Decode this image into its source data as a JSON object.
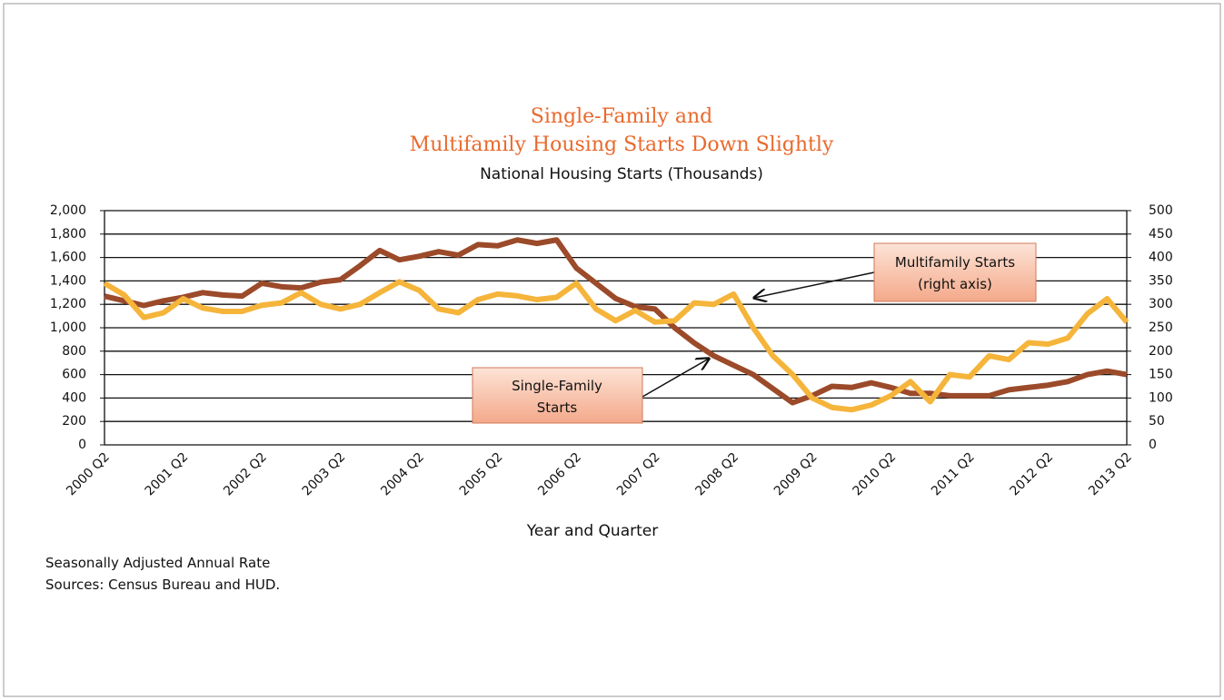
{
  "chart_data": {
    "type": "line",
    "title": [
      "Single-Family  and",
      "Multifamily Housing Starts Down Slightly"
    ],
    "subtitle": "National Housing Starts (Thousands)",
    "x_label": "Year and Quarter",
    "notes": [
      "Seasonally Adjusted Annual Rate",
      "Sources: Census Bureau and HUD."
    ],
    "annotations": [
      {
        "lines": [
          "Multifamily Starts",
          "(right axis)"
        ]
      },
      {
        "lines": [
          "Single-Family",
          "Starts"
        ]
      }
    ],
    "categories": [
      "2000 Q2",
      null,
      null,
      null,
      "2001 Q2",
      null,
      null,
      null,
      "2002 Q2",
      null,
      null,
      null,
      "2003 Q2",
      null,
      null,
      null,
      "2004 Q2",
      null,
      null,
      null,
      "2005 Q2",
      null,
      null,
      null,
      "2006 Q2",
      null,
      null,
      null,
      "2007 Q2",
      null,
      null,
      null,
      "2008 Q2",
      null,
      null,
      null,
      "2009 Q2",
      null,
      null,
      null,
      "2010 Q2",
      null,
      null,
      null,
      "2011 Q2",
      null,
      null,
      null,
      "2012 Q2",
      null,
      null,
      null,
      "2013 Q2"
    ],
    "series": [
      {
        "color": "#9b4a2a",
        "values": [
          1270,
          1230,
          1190,
          1230,
          1260,
          1300,
          1280,
          1270,
          1380,
          1350,
          1340,
          1390,
          1410,
          1530,
          1660,
          1580,
          1610,
          1650,
          1620,
          1710,
          1700,
          1750,
          1720,
          1750,
          1510,
          1380,
          1250,
          1180,
          1160,
          1000,
          870,
          760,
          680,
          600,
          480,
          360,
          420,
          500,
          490,
          530,
          490,
          440,
          440,
          420,
          420,
          420,
          470,
          490,
          510,
          540,
          600,
          630,
          600
        ]
      },
      {
        "color": "#f5b43a",
        "axis": "y2",
        "values": [
          345,
          320,
          272,
          282,
          312,
          292,
          285,
          285,
          298,
          303,
          325,
          300,
          290,
          300,
          325,
          348,
          330,
          290,
          282,
          310,
          322,
          318,
          310,
          315,
          345,
          290,
          265,
          287,
          262,
          265,
          303,
          300,
          322,
          250,
          190,
          150,
          100,
          80,
          75,
          85,
          105,
          135,
          92,
          150,
          145,
          190,
          182,
          218,
          215,
          228,
          280,
          312,
          262
        ]
      }
    ],
    "ylim": [
      0,
      2000
    ],
    "yticks": [
      0,
      200,
      400,
      600,
      800,
      {
        "value": 1000,
        "label": "1,000"
      },
      {
        "value": 1200,
        "label": "1,200"
      },
      {
        "value": 1400,
        "label": "1,400"
      },
      {
        "value": 1600,
        "label": "1,600"
      },
      {
        "value": 1800,
        "label": "1,800"
      },
      {
        "value": 2000,
        "label": "2,000"
      }
    ],
    "y2lim": [
      0,
      500
    ],
    "y2ticks": [
      0,
      50,
      100,
      150,
      200,
      250,
      300,
      350,
      400,
      450,
      500
    ],
    "grid": true
  }
}
